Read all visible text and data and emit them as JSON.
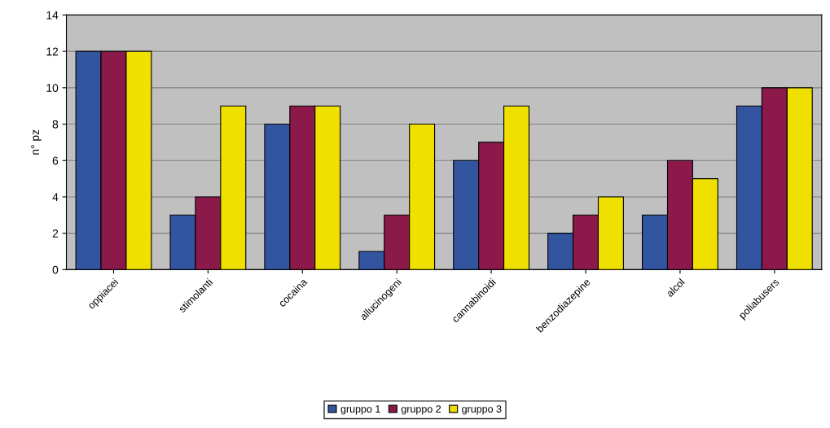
{
  "chart_data": {
    "type": "bar",
    "ylabel": "n° pz",
    "categories": [
      "oppiacei",
      "stimolanti",
      "cocaina",
      "allucinogeni",
      "cannabinoidi",
      "benzodiazepine",
      "alcol",
      "poliabusers"
    ],
    "series": [
      {
        "name": "gruppo 1",
        "color": "#3355a0",
        "values": [
          12,
          3,
          8,
          1,
          6,
          2,
          3,
          9
        ]
      },
      {
        "name": "gruppo 2",
        "color": "#8b1a4a",
        "values": [
          12,
          4,
          9,
          3,
          7,
          3,
          6,
          10
        ]
      },
      {
        "name": "gruppo 3",
        "color": "#f0e000",
        "values": [
          12,
          9,
          9,
          8,
          9,
          4,
          5,
          10
        ]
      }
    ],
    "ylim": [
      0,
      14
    ],
    "yticks": [
      0,
      2,
      4,
      6,
      8,
      10,
      12,
      14
    ],
    "grid": "y",
    "legend": "bottom"
  }
}
